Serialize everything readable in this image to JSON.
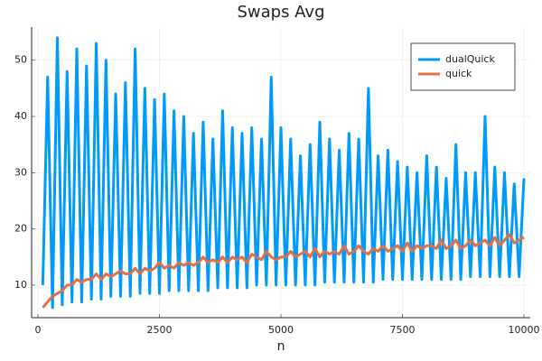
{
  "chart_data": {
    "type": "line",
    "title": "Swaps Avg",
    "x_label": "n",
    "x": [
      100,
      200,
      300,
      400,
      500,
      600,
      700,
      800,
      900,
      1000,
      1100,
      1200,
      1300,
      1400,
      1500,
      1600,
      1700,
      1800,
      1900,
      2000,
      2100,
      2200,
      2300,
      2400,
      2500,
      2600,
      2700,
      2800,
      2900,
      3000,
      3100,
      3200,
      3300,
      3400,
      3500,
      3600,
      3700,
      3800,
      3900,
      4000,
      4100,
      4200,
      4300,
      4400,
      4500,
      4600,
      4700,
      4800,
      4900,
      5000,
      5100,
      5200,
      5300,
      5400,
      5500,
      5600,
      5700,
      5800,
      5900,
      6000,
      6100,
      6200,
      6300,
      6400,
      6500,
      6600,
      6700,
      6800,
      6900,
      7000,
      7100,
      7200,
      7300,
      7400,
      7500,
      7600,
      7700,
      7800,
      7900,
      8000,
      8100,
      8200,
      8300,
      8400,
      8500,
      8600,
      8700,
      8800,
      8900,
      9000,
      9100,
      9200,
      9300,
      9400,
      9500,
      9600,
      9700,
      9800,
      9900,
      10000
    ],
    "series": [
      {
        "name": "dualQuick",
        "color": "#009af9",
        "values": [
          10,
          47,
          6,
          54,
          6.5,
          48,
          7,
          52,
          7,
          49,
          7.5,
          53,
          7.5,
          50,
          8,
          44,
          8,
          46,
          8,
          52,
          8.5,
          45,
          8.5,
          43,
          8.5,
          44,
          9,
          41,
          9,
          40,
          9,
          37,
          9,
          39,
          9,
          36,
          9.5,
          41,
          9.5,
          38,
          9.5,
          37,
          9.5,
          38,
          10,
          36,
          10,
          47,
          10,
          38,
          10,
          36,
          10,
          33,
          10,
          35,
          10,
          39,
          10.5,
          36,
          10.5,
          34,
          10.5,
          37,
          10.5,
          36,
          10.5,
          45,
          10.5,
          33,
          11,
          34,
          11,
          32,
          11,
          31,
          11,
          30,
          11,
          33,
          11,
          31,
          11,
          29,
          11,
          35,
          11,
          30,
          11.5,
          30,
          11.5,
          40,
          11.5,
          31,
          11.5,
          30,
          11.5,
          28,
          11.5,
          29
        ]
      },
      {
        "name": "quick",
        "color": "#e26f46",
        "values": [
          6,
          7,
          8,
          8.5,
          9,
          10,
          10,
          11,
          10.5,
          11,
          11,
          12,
          11,
          12,
          11.5,
          12,
          12.5,
          12,
          12,
          13,
          12,
          13,
          12.5,
          13,
          14,
          13,
          13.5,
          13,
          14,
          13.5,
          14,
          13.5,
          14,
          15,
          14,
          14.5,
          14,
          15,
          14,
          15,
          14.5,
          15,
          14,
          15.5,
          15,
          14.5,
          16,
          15,
          14.5,
          15,
          15,
          16,
          15,
          15.5,
          16,
          15,
          16.5,
          15,
          16,
          15.5,
          16,
          15.5,
          17,
          15.5,
          16,
          17,
          16,
          15.5,
          16.5,
          16,
          17,
          16,
          16.5,
          17,
          16,
          17.5,
          16,
          17,
          16.5,
          17,
          17,
          16.5,
          18,
          16.5,
          17,
          18,
          16.5,
          17,
          18,
          17,
          17.5,
          18,
          17,
          18.5,
          17,
          18,
          19,
          17.5,
          18,
          18.5
        ]
      }
    ],
    "xlim": [
      -130,
      10130
    ],
    "ylim": [
      4.2,
      55.9
    ],
    "xticks": [
      0,
      2500,
      5000,
      7500,
      10000
    ],
    "yticks": [
      10,
      20,
      30,
      40,
      50
    ],
    "grid": true,
    "legend": "top-right"
  }
}
